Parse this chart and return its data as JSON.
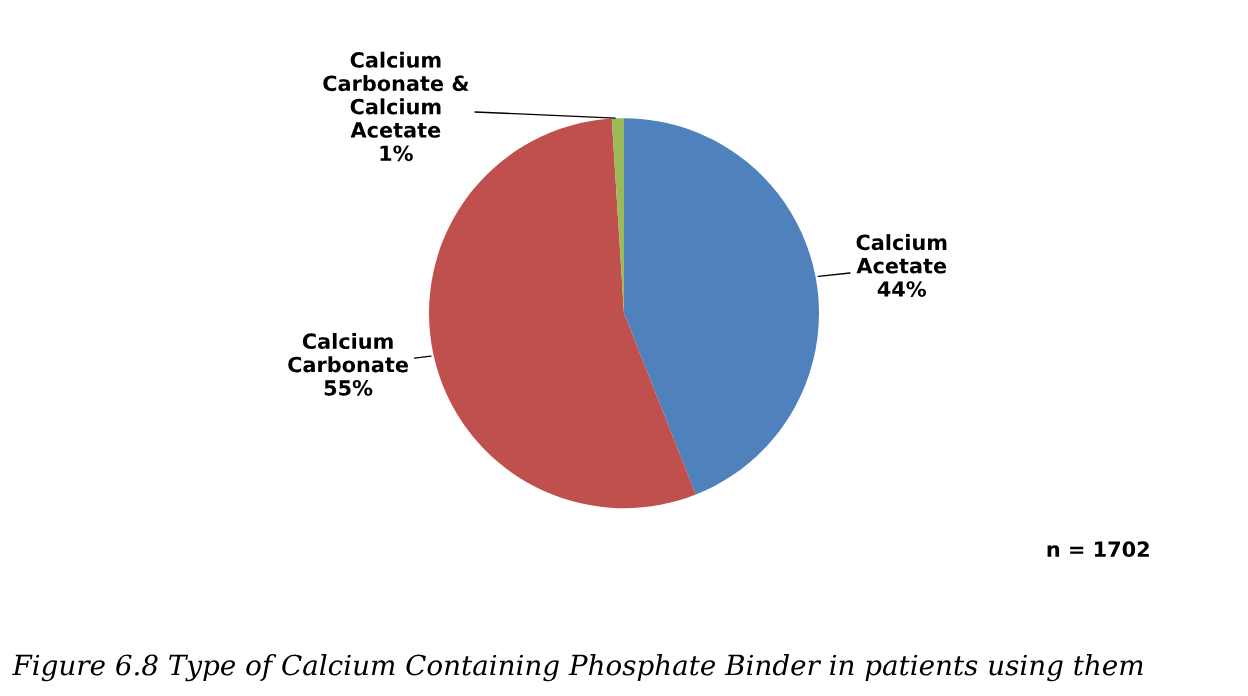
{
  "chart_data": {
    "type": "pie",
    "categories": [
      "Calcium Acetate",
      "Calcium Carbonate",
      "Calcium Carbonate & Calcium Acetate"
    ],
    "values": [
      44,
      55,
      1
    ],
    "value_labels": [
      "44%",
      "55%",
      "1%"
    ],
    "colors": [
      "#4f81bd",
      "#c0504d",
      "#9bbb59"
    ],
    "annotations": [
      "n = 1702",
      "Figure 6.8 Type of Calcium Containing Phosphate Binder in patients using them"
    ]
  }
}
